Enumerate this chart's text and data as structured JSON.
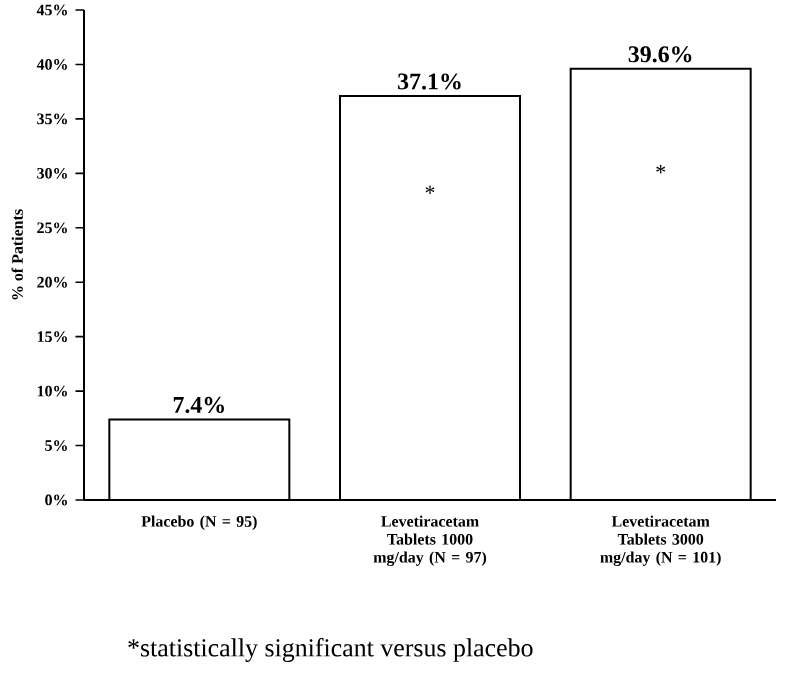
{
  "chart_data": {
    "type": "bar",
    "ylabel": "% of Patients",
    "categories": [
      "Placebo (N = 95)",
      "Levetiracetam Tablets 1000 mg/day (N = 97)",
      "Levetiracetam Tablets 3000 mg/day (N = 101)"
    ],
    "values": [
      7.4,
      37.1,
      39.6
    ],
    "value_labels": [
      "7.4%",
      "37.1%",
      "39.6%"
    ],
    "color": "#ffffff",
    "ylim": [
      0,
      45
    ],
    "yticks": [
      {
        "value": 0,
        "label": "0%"
      },
      {
        "value": 5,
        "label": "5%"
      },
      {
        "value": 10,
        "label": "10%"
      },
      {
        "value": 15,
        "label": "15%"
      },
      {
        "value": 20,
        "label": "20%"
      },
      {
        "value": 25,
        "label": "25%"
      },
      {
        "value": 30,
        "label": "30%"
      },
      {
        "value": 35,
        "label": "35%"
      },
      {
        "value": 40,
        "label": "40%"
      },
      {
        "value": 45,
        "label": "45%"
      }
    ],
    "grid": false,
    "annotations": [
      "*",
      "*",
      "*statistically significant versus placebo"
    ]
  }
}
